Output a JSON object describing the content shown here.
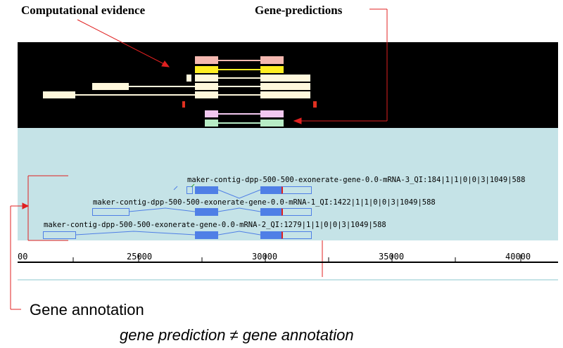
{
  "labels": {
    "computational_evidence": "Computational evidence",
    "gene_predictions": "Gene-predictions",
    "gene_annotation": "Gene annotation",
    "equation": "gene prediction ≠ gene annotation"
  },
  "transcripts": [
    {
      "name": "maker-contig-dpp-500-500-exonerate-gene-0.0-mRNA-3_QI:184|1|1|0|0|3|1049|588"
    },
    {
      "name": "maker-contig-dpp-500-500-exonerate-gene-0.0-mRNA-1_QI:1422|1|1|0|0|3|1049|588"
    },
    {
      "name": "maker-contig-dpp-500-500-exonerate-gene-0.0-mRNA-2_QI:1279|1|1|0|0|3|1049|588"
    }
  ],
  "axis": {
    "ticks": [
      "00",
      "25000",
      "30000",
      "35000",
      "40000"
    ]
  },
  "colors": {
    "track_background": "#000000",
    "annotation_background": "#c5e3e7",
    "exon_blue": "#4f7fe6",
    "callout_red": "#e02020"
  }
}
